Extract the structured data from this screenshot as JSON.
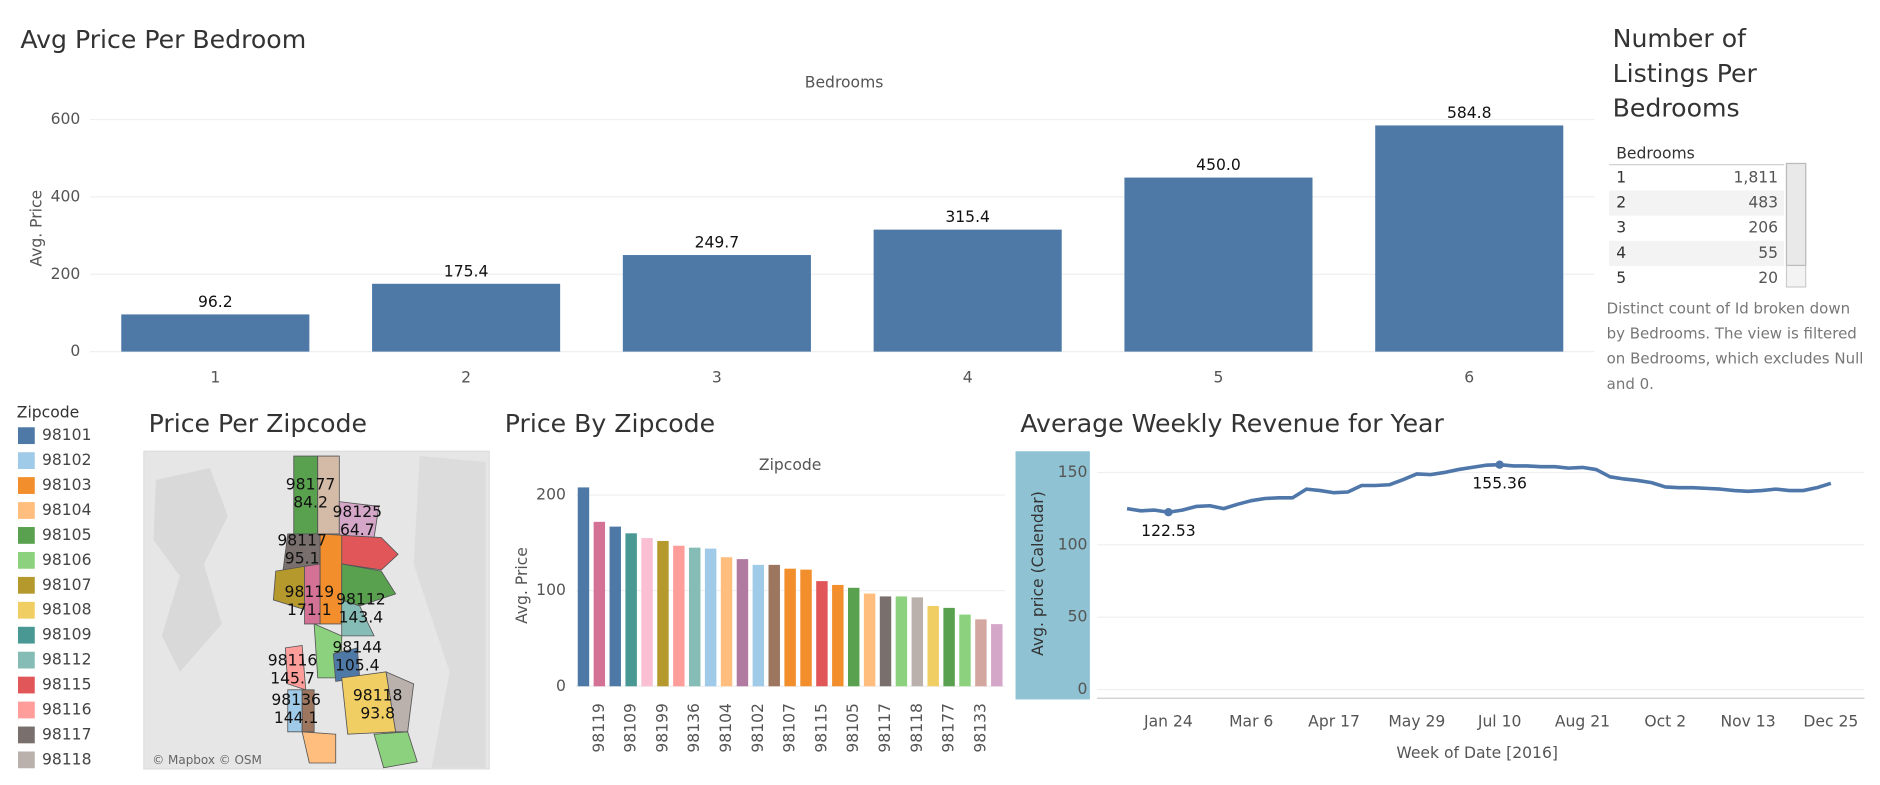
{
  "chart_data": [
    {
      "type": "bar",
      "title": "Avg Price Per Bedroom",
      "x_label": "Bedrooms",
      "y_label": "Avg. Price",
      "categories": [
        "1",
        "2",
        "3",
        "4",
        "5",
        "6"
      ],
      "values": [
        96.2,
        175.4,
        249.7,
        315.4,
        450.0,
        584.8
      ],
      "value_labels": [
        "96.2",
        "175.4",
        "249.7",
        "315.4",
        "450.0",
        "584.8"
      ],
      "color": "#4e79a7",
      "ylim": [
        -22,
        660
      ],
      "yticks": [
        0,
        200,
        400,
        600
      ],
      "grid": true
    },
    {
      "type": "bar",
      "title": "Price By Zipcode",
      "x_label": "Zipcode",
      "y_label": "Avg. Price",
      "categories": [
        null,
        "98119",
        null,
        "98109",
        null,
        "98199",
        null,
        "98136",
        null,
        "98104",
        null,
        "98102",
        null,
        "98107",
        null,
        "98115",
        null,
        "98105",
        null,
        "98117",
        null,
        "98118",
        null,
        "98177",
        null,
        "98133",
        null
      ],
      "values": [
        208,
        172,
        167,
        160,
        155,
        152,
        147,
        145,
        144,
        135,
        133,
        127,
        127,
        123,
        122,
        110,
        106,
        103,
        97,
        94,
        94,
        93,
        84,
        82,
        75,
        70,
        65
      ],
      "colors": [
        "#4e79a7",
        "#d37295",
        "#4e79a7",
        "#499894",
        "#fabfd2",
        "#b6992d",
        "#ff9d9a",
        "#86bcb6",
        "#a0cbe8",
        "#ffbe7d",
        "#b07aa1",
        "#a0cbe8",
        "#9d7660",
        "#f28e2b",
        "#f28e2b",
        "#e15759",
        "#f28e2b",
        "#59a14f",
        "#ffbe7d",
        "#79706e",
        "#8cd17d",
        "#bab0ac",
        "#f1ce63",
        "#59a14f",
        "#8cd17d",
        "#d4a6a0",
        "#d4a6c8"
      ],
      "ylim": [
        -10,
        222
      ],
      "yticks": [
        0,
        100,
        200
      ],
      "grid": true
    },
    {
      "type": "line",
      "title": "Average Weekly Revenue for Year",
      "x_label": "Week of Date [2016]",
      "y_label": "Avg. price (Calendar)",
      "categories": [
        null,
        null,
        null,
        "Jan 24",
        null,
        null,
        null,
        null,
        null,
        "Mar 6",
        null,
        null,
        null,
        null,
        null,
        "Apr 17",
        null,
        null,
        null,
        null,
        null,
        "May 29",
        null,
        null,
        null,
        null,
        null,
        "Jul 10",
        null,
        null,
        null,
        null,
        null,
        "Aug 21",
        null,
        null,
        null,
        null,
        null,
        "Oct 2",
        null,
        null,
        null,
        null,
        null,
        "Nov 13",
        null,
        null,
        null,
        null,
        null,
        "Dec 25"
      ],
      "values": [
        125,
        123.5,
        124,
        122.53,
        124,
        126.5,
        127,
        125,
        128,
        130.5,
        132,
        132.5,
        132.5,
        138.5,
        137.5,
        136,
        136.5,
        141,
        141,
        141.5,
        145,
        149,
        148.5,
        150,
        152,
        153.5,
        155,
        155.36,
        154.5,
        154.5,
        154,
        154,
        153,
        153.5,
        152,
        147,
        145.5,
        144.5,
        143,
        140,
        139.5,
        139.5,
        139,
        138.5,
        137.5,
        137,
        137.5,
        138.5,
        137.5,
        137.5,
        139.5,
        142.5
      ],
      "color": "#4f77aa",
      "marked_points": [
        3,
        27
      ],
      "ylim": [
        -6,
        163
      ],
      "yticks": [
        0,
        50,
        100,
        150
      ],
      "grid": true
    }
  ],
  "table": {
    "title": "Number of Listings Per Bedrooms",
    "header": "Bedrooms",
    "rows": [
      [
        "1",
        "1,811"
      ],
      [
        "2",
        "483"
      ],
      [
        "3",
        "206"
      ],
      [
        "4",
        "55"
      ],
      [
        "5",
        "20"
      ]
    ],
    "note": "Distinct count of Id broken down by Bedrooms. The view is filtered on Bedrooms, which excludes Null and 0."
  },
  "legend": {
    "title": "Zipcode",
    "items": [
      {
        "name": "98101",
        "color": "#4e79a7"
      },
      {
        "name": "98102",
        "color": "#a0cbe8"
      },
      {
        "name": "98103",
        "color": "#f28e2b"
      },
      {
        "name": "98104",
        "color": "#ffbe7d"
      },
      {
        "name": "98105",
        "color": "#59a14f"
      },
      {
        "name": "98106",
        "color": "#8cd17d"
      },
      {
        "name": "98107",
        "color": "#b6992d"
      },
      {
        "name": "98108",
        "color": "#f1ce63"
      },
      {
        "name": "98109",
        "color": "#499894"
      },
      {
        "name": "98112",
        "color": "#86bcb6"
      },
      {
        "name": "98115",
        "color": "#e15759"
      },
      {
        "name": "98116",
        "color": "#ff9d9a"
      },
      {
        "name": "98117",
        "color": "#79706e"
      },
      {
        "name": "98118",
        "color": "#bab0ac"
      }
    ]
  },
  "map": {
    "title": "Price Per Zipcode",
    "credit": "© Mapbox © OSM",
    "regions": [
      {
        "zipcode": "98177",
        "value": 84.2
      },
      {
        "zipcode": "98125",
        "value": 64.7
      },
      {
        "zipcode": "98117",
        "value": 95.1
      },
      {
        "zipcode": "98119",
        "value": 171.1
      },
      {
        "zipcode": "98112",
        "value": 143.4
      },
      {
        "zipcode": "98116",
        "value": 145.7
      },
      {
        "zipcode": "98144",
        "value": 105.4
      },
      {
        "zipcode": "98136",
        "value": 144.1
      },
      {
        "zipcode": "98118",
        "value": 93.8
      }
    ]
  }
}
